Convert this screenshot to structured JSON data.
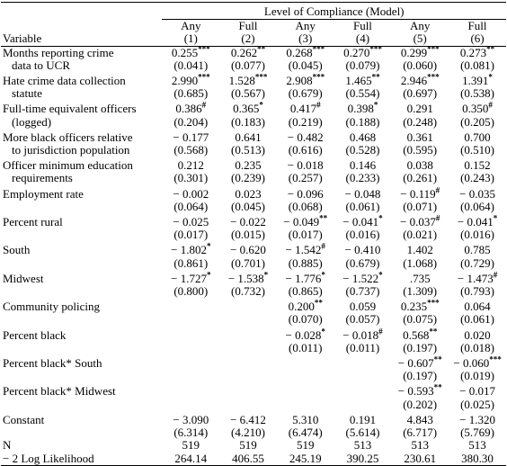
{
  "header": {
    "spanner": "Level of Compliance (Model)",
    "variable": "Variable",
    "columns": [
      {
        "type": "Any",
        "model": "(1)"
      },
      {
        "type": "Full",
        "model": "(2)"
      },
      {
        "type": "Any",
        "model": "(3)"
      },
      {
        "type": "Full",
        "model": "(4)"
      },
      {
        "type": "Any",
        "model": "(5)"
      },
      {
        "type": "Full",
        "model": "(6)"
      }
    ]
  },
  "rows": [
    {
      "label": [
        "Months reporting crime",
        "data to UCR"
      ],
      "coefs": [
        {
          "b": "0.255",
          "sig": "***"
        },
        {
          "b": "0.262",
          "sig": "**"
        },
        {
          "b": "0.268",
          "sig": "***"
        },
        {
          "b": "0.270",
          "sig": "***"
        },
        {
          "b": "0.299",
          "sig": "***"
        },
        {
          "b": "0.273",
          "sig": "**"
        }
      ],
      "se": [
        "(0.041)",
        "(0.077)",
        "(0.045)",
        "(0.079)",
        "(0.060)",
        "(0.081)"
      ]
    },
    {
      "label": [
        "Hate crime data collection",
        "statute"
      ],
      "coefs": [
        {
          "b": "2.990",
          "sig": "***"
        },
        {
          "b": "1.528",
          "sig": "***"
        },
        {
          "b": "2.908",
          "sig": "***"
        },
        {
          "b": "1.465",
          "sig": "**"
        },
        {
          "b": "2.946",
          "sig": "***"
        },
        {
          "b": "1.391",
          "sig": "*"
        }
      ],
      "se": [
        "(0.685)",
        "(0.567)",
        "(0.679)",
        "(0.554)",
        "(0.697)",
        "(0.538)"
      ]
    },
    {
      "label": [
        "Full-time equivalent officers",
        "(logged)"
      ],
      "coefs": [
        {
          "b": "0.386",
          "sig": "#"
        },
        {
          "b": "0.365",
          "sig": "*"
        },
        {
          "b": "0.417",
          "sig": "#"
        },
        {
          "b": "0.398",
          "sig": "*"
        },
        {
          "b": "0.291"
        },
        {
          "b": "0.350",
          "sig": "#"
        }
      ],
      "se": [
        "(0.204)",
        "(0.183)",
        "(0.219)",
        "(0.188)",
        "(0.248)",
        "(0.205)"
      ]
    },
    {
      "label": [
        "More black officers relative",
        "to jurisdiction population"
      ],
      "coefs": [
        {
          "b": "− 0.177"
        },
        {
          "b": "0.641"
        },
        {
          "b": "− 0.482"
        },
        {
          "b": "0.468"
        },
        {
          "b": "0.361"
        },
        {
          "b": "0.700"
        }
      ],
      "se": [
        "(0.568)",
        "(0.513)",
        "(0.616)",
        "(0.528)",
        "(0.595)",
        "(0.510)"
      ]
    },
    {
      "label": [
        "Officer minimum education",
        "requirements"
      ],
      "coefs": [
        {
          "b": "0.212"
        },
        {
          "b": "0.235"
        },
        {
          "b": "− 0.018"
        },
        {
          "b": "0.146"
        },
        {
          "b": "0.038"
        },
        {
          "b": "0.152"
        }
      ],
      "se": [
        "(0.301)",
        "(0.239)",
        "(0.257)",
        "(0.233)",
        "(0.261)",
        "(0.243)"
      ]
    },
    {
      "label": [
        "Employment rate"
      ],
      "coefs": [
        {
          "b": "− 0.002"
        },
        {
          "b": "0.023"
        },
        {
          "b": "− 0.096"
        },
        {
          "b": "− 0.048"
        },
        {
          "b": "− 0.119",
          "sig": "#"
        },
        {
          "b": "− 0.035"
        }
      ],
      "se": [
        "(0.064)",
        "(0.045)",
        "(0.068)",
        "(0.061)",
        "(0.071)",
        "(0.064)"
      ]
    },
    {
      "label": [
        "Percent rural"
      ],
      "coefs": [
        {
          "b": "− 0.025"
        },
        {
          "b": "− 0.022"
        },
        {
          "b": "− 0.049",
          "sig": "**"
        },
        {
          "b": "− 0.041",
          "sig": "*"
        },
        {
          "b": "− 0.037",
          "sig": "#"
        },
        {
          "b": "− 0.041",
          "sig": "*"
        }
      ],
      "se": [
        "(0.017)",
        "(0.015)",
        "(0.017)",
        "(0.016)",
        "(0.021)",
        "(0.016)"
      ]
    },
    {
      "label": [
        "South"
      ],
      "coefs": [
        {
          "b": "− 1.802",
          "sig": "*"
        },
        {
          "b": "− 0.620"
        },
        {
          "b": "− 1.542",
          "sig": "#"
        },
        {
          "b": "− 0.410"
        },
        {
          "b": "1.402"
        },
        {
          "b": "0.785"
        }
      ],
      "se": [
        "(0.861)",
        "(0.701)",
        "(0.885)",
        "(0.679)",
        "(1.068)",
        "(0.729)"
      ]
    },
    {
      "label": [
        "Midwest"
      ],
      "coefs": [
        {
          "b": "− 1.727",
          "sig": "*"
        },
        {
          "b": "− 1.538",
          "sig": "*"
        },
        {
          "b": "− 1.776",
          "sig": "*"
        },
        {
          "b": "− 1.522",
          "sig": "*"
        },
        {
          "b": ".735"
        },
        {
          "b": "− 1.473",
          "sig": "#"
        }
      ],
      "se": [
        "(0.800)",
        "(0.732)",
        "(0.865)",
        "(0.737)",
        "(1.309)",
        "(0.793)"
      ]
    },
    {
      "label": [
        "Community policing"
      ],
      "coefs": [
        null,
        null,
        {
          "b": "0.200",
          "sig": "**"
        },
        {
          "b": "0.059"
        },
        {
          "b": "0.235",
          "sig": "***"
        },
        {
          "b": "0.064"
        }
      ],
      "se": [
        null,
        null,
        "(0.070)",
        "(0.057)",
        "(0.075)",
        "(0.061)"
      ]
    },
    {
      "label": [
        "Percent black"
      ],
      "coefs": [
        null,
        null,
        {
          "b": "− 0.028",
          "sig": "*"
        },
        {
          "b": "− 0.018",
          "sig": "#"
        },
        {
          "b": "0.568",
          "sig": "**"
        },
        {
          "b": "0.020"
        }
      ],
      "se": [
        null,
        null,
        "(0.011)",
        "(0.011)",
        "(0.197)",
        "(0.018)"
      ]
    },
    {
      "label": [
        "Percent black* South"
      ],
      "coefs": [
        null,
        null,
        null,
        null,
        {
          "b": "− 0.607",
          "sig": "**"
        },
        {
          "b": "− 0.060",
          "sig": "***"
        }
      ],
      "se": [
        null,
        null,
        null,
        null,
        "(0.197)",
        "(0.019)"
      ]
    },
    {
      "label": [
        "Percent black* Midwest"
      ],
      "coefs": [
        null,
        null,
        null,
        null,
        {
          "b": "− 0.593",
          "sig": "**"
        },
        {
          "b": "− 0.017"
        }
      ],
      "se": [
        null,
        null,
        null,
        null,
        "(0.202)",
        "(0.025)"
      ]
    },
    {
      "label": [
        "Constant"
      ],
      "coefs": [
        {
          "b": "− 3.090"
        },
        {
          "b": "− 6.412"
        },
        {
          "b": "5.310"
        },
        {
          "b": "0.191"
        },
        {
          "b": "4.843"
        },
        {
          "b": "− 1.320"
        }
      ],
      "se": [
        "(6.314)",
        "(4.210)",
        "(6.474)",
        "(5.614)",
        "(6.717)",
        "(5.769)"
      ]
    }
  ],
  "stats": [
    {
      "label": "N",
      "values": [
        "519",
        "519",
        "519",
        "513",
        "513",
        "513"
      ]
    },
    {
      "label": "− 2 Log Likelihood",
      "values": [
        "264.14",
        "406.55",
        "245.19",
        "390.25",
        "230.61",
        "380.30"
      ]
    }
  ]
}
